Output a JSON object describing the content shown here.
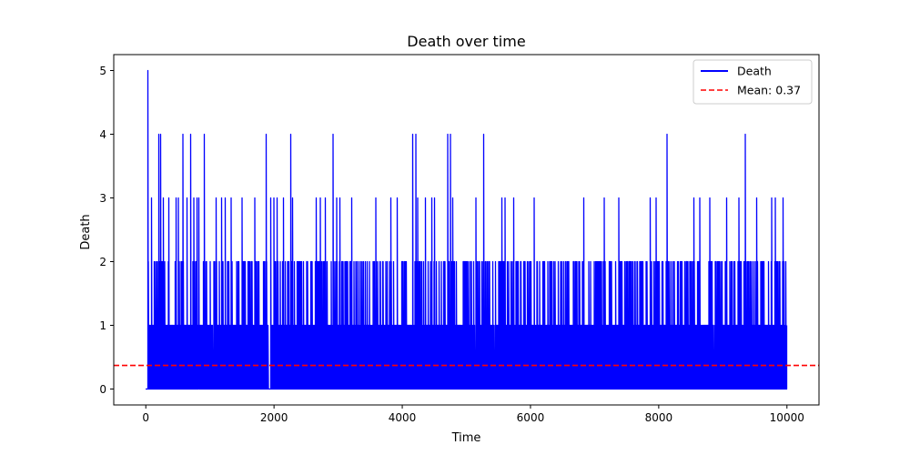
{
  "chart_data": {
    "type": "line",
    "title": "Death over time",
    "xlabel": "Time",
    "ylabel": "Death",
    "xlim": [
      -500,
      10500
    ],
    "ylim": [
      -0.25,
      5.25
    ],
    "xticks": [
      0,
      2000,
      4000,
      6000,
      8000,
      10000
    ],
    "yticks": [
      0,
      1,
      2,
      3,
      4,
      5
    ],
    "grid": false,
    "legend_position": "top-right",
    "series": [
      {
        "name": "Death",
        "color": "#0000ff",
        "style": "solid",
        "n_points": 10000,
        "x_range": [
          0,
          9999
        ],
        "possible_values": [
          0,
          1,
          2,
          3,
          4,
          5
        ],
        "peaks": [
          {
            "x": 35,
            "y": 5
          },
          {
            "x": 90,
            "y": 3
          },
          {
            "x": 200,
            "y": 4
          },
          {
            "x": 230,
            "y": 4
          },
          {
            "x": 270,
            "y": 3
          },
          {
            "x": 360,
            "y": 3
          },
          {
            "x": 470,
            "y": 3
          },
          {
            "x": 510,
            "y": 3
          },
          {
            "x": 580,
            "y": 4
          },
          {
            "x": 640,
            "y": 3
          },
          {
            "x": 700,
            "y": 4
          },
          {
            "x": 750,
            "y": 3
          },
          {
            "x": 800,
            "y": 3
          },
          {
            "x": 830,
            "y": 3
          },
          {
            "x": 910,
            "y": 4
          },
          {
            "x": 1100,
            "y": 3
          },
          {
            "x": 1180,
            "y": 3
          },
          {
            "x": 1240,
            "y": 3
          },
          {
            "x": 1330,
            "y": 3
          },
          {
            "x": 1500,
            "y": 3
          },
          {
            "x": 1700,
            "y": 3
          },
          {
            "x": 1880,
            "y": 4
          },
          {
            "x": 1950,
            "y": 3
          },
          {
            "x": 2000,
            "y": 3
          },
          {
            "x": 2050,
            "y": 3
          },
          {
            "x": 2150,
            "y": 3
          },
          {
            "x": 2260,
            "y": 4
          },
          {
            "x": 2290,
            "y": 3
          },
          {
            "x": 2660,
            "y": 3
          },
          {
            "x": 2720,
            "y": 3
          },
          {
            "x": 2800,
            "y": 3
          },
          {
            "x": 2920,
            "y": 4
          },
          {
            "x": 2980,
            "y": 3
          },
          {
            "x": 3030,
            "y": 3
          },
          {
            "x": 3210,
            "y": 3
          },
          {
            "x": 3590,
            "y": 3
          },
          {
            "x": 3820,
            "y": 3
          },
          {
            "x": 3920,
            "y": 3
          },
          {
            "x": 4160,
            "y": 4
          },
          {
            "x": 4210,
            "y": 4
          },
          {
            "x": 4240,
            "y": 3
          },
          {
            "x": 4360,
            "y": 3
          },
          {
            "x": 4460,
            "y": 3
          },
          {
            "x": 4500,
            "y": 3
          },
          {
            "x": 4710,
            "y": 4
          },
          {
            "x": 4750,
            "y": 4
          },
          {
            "x": 4790,
            "y": 3
          },
          {
            "x": 5150,
            "y": 3
          },
          {
            "x": 5270,
            "y": 4
          },
          {
            "x": 5550,
            "y": 3
          },
          {
            "x": 5600,
            "y": 3
          },
          {
            "x": 5740,
            "y": 3
          },
          {
            "x": 6060,
            "y": 3
          },
          {
            "x": 6830,
            "y": 3
          },
          {
            "x": 7150,
            "y": 3
          },
          {
            "x": 7380,
            "y": 3
          },
          {
            "x": 7870,
            "y": 3
          },
          {
            "x": 7960,
            "y": 3
          },
          {
            "x": 8130,
            "y": 4
          },
          {
            "x": 8550,
            "y": 3
          },
          {
            "x": 8640,
            "y": 3
          },
          {
            "x": 8800,
            "y": 3
          },
          {
            "x": 9060,
            "y": 3
          },
          {
            "x": 9250,
            "y": 3
          },
          {
            "x": 9350,
            "y": 4
          },
          {
            "x": 9530,
            "y": 3
          },
          {
            "x": 9760,
            "y": 3
          },
          {
            "x": 9820,
            "y": 3
          },
          {
            "x": 9940,
            "y": 3
          }
        ]
      },
      {
        "name": "Mean: 0.37",
        "color": "#ff0000",
        "style": "dashed",
        "type": "hline",
        "y": 0.37
      }
    ]
  }
}
